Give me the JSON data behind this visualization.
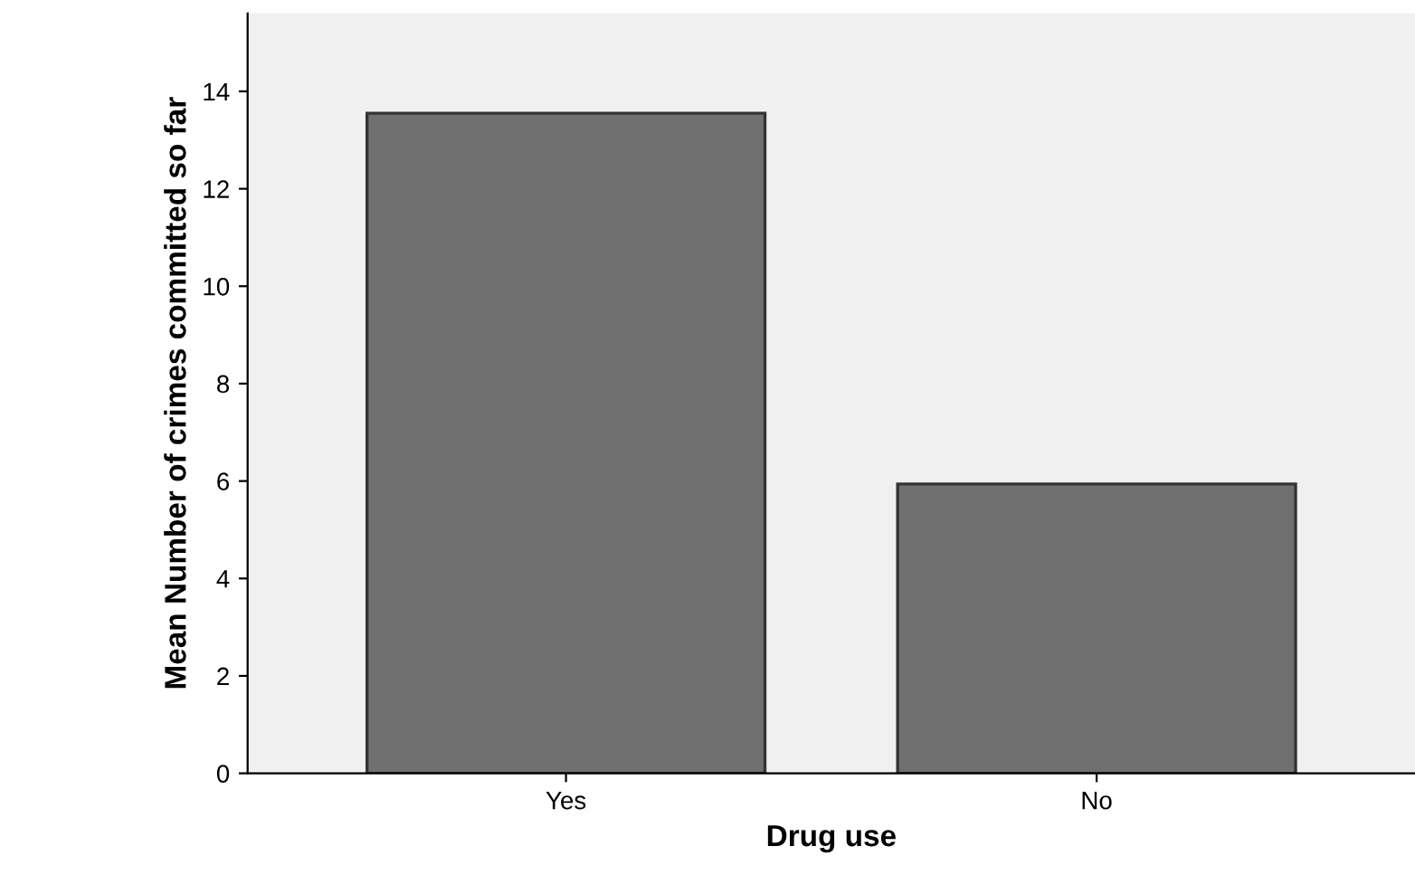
{
  "chart_data": {
    "type": "bar",
    "xlabel": "Drug use",
    "ylabel": "Mean Number of crimes committed so far",
    "categories": [
      "Yes",
      "No"
    ],
    "values": [
      13.55,
      5.94
    ],
    "color": "#707070",
    "ylim": [
      0,
      15.6
    ],
    "yticks": [
      0,
      2,
      4,
      6,
      8,
      10,
      12,
      14
    ],
    "grid": false
  }
}
